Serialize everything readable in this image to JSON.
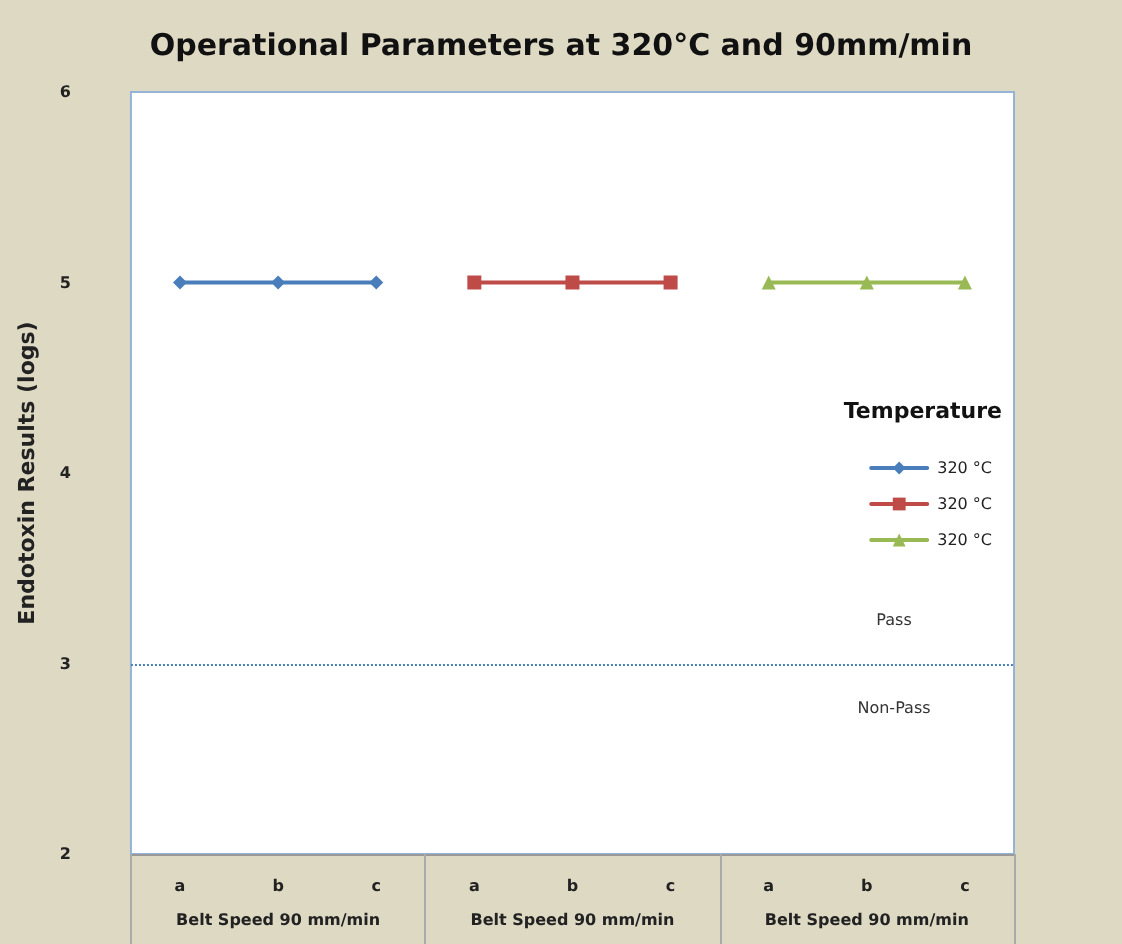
{
  "chart_data": {
    "type": "line",
    "title": "Operational Parameters at 320°C and 90mm/min",
    "ylabel": "Endotoxin Results (logs)",
    "legend_title": "Temperature",
    "categories": [
      "a",
      "b",
      "c",
      "a",
      "b",
      "c",
      "a",
      "b",
      "c"
    ],
    "series": [
      {
        "name": "320 °C",
        "color": "#4a7ebb",
        "marker": "diamond",
        "values": [
          5,
          5,
          5,
          null,
          null,
          null,
          null,
          null,
          null
        ]
      },
      {
        "name": "320 °C",
        "color": "#be4b48",
        "marker": "square",
        "values": [
          null,
          null,
          null,
          5,
          5,
          5,
          null,
          null,
          null
        ]
      },
      {
        "name": "320 °C",
        "color": "#98b954",
        "marker": "triangle",
        "values": [
          null,
          null,
          null,
          null,
          null,
          null,
          5,
          5,
          5
        ]
      }
    ],
    "ylim": [
      2,
      6
    ],
    "yticks": [
      2,
      3,
      4,
      5,
      6
    ],
    "grid": false,
    "legend": "right",
    "ref_lines": [
      {
        "axis": "y",
        "value": 3,
        "color": "#4a7ebb",
        "line_style": "dotted"
      }
    ],
    "annotations": [
      "Pass",
      "Non-Pass",
      "Belt Speed 90 mm/min",
      "Belt Speed 90 mm/min",
      "Belt Speed 90 mm/min"
    ]
  }
}
